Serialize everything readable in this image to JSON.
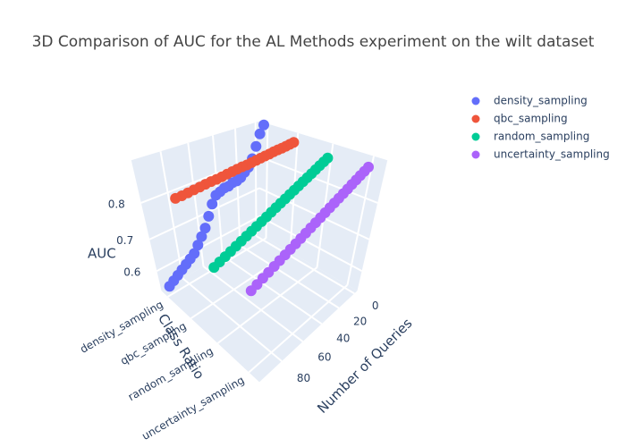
{
  "chart_data": {
    "type": "scatter3d",
    "title": "3D Comparison of AUC for the AL Methods experiment on the wilt dataset",
    "x_label": "Number of Queries",
    "y_label": "Class Ratio",
    "z_label": "AUC",
    "x": [
      0,
      4,
      8,
      12,
      16,
      20,
      24,
      28,
      32,
      36,
      40,
      44,
      48,
      52,
      56,
      60,
      64,
      68,
      72,
      76,
      80,
      84,
      88,
      92,
      96
    ],
    "categories": [
      "density_sampling",
      "qbc_sampling",
      "random_sampling",
      "uncertainty_sampling"
    ],
    "xlim": [
      -4,
      99
    ],
    "xticks": [
      0,
      20,
      40,
      60,
      80
    ],
    "ylim": [
      -0.3,
      3.3
    ],
    "zlim": [
      0.53,
      0.9
    ],
    "zticks": [
      0.6,
      0.7,
      0.8
    ],
    "grid": true,
    "legend_position": "right",
    "series": [
      {
        "name": "density_sampling",
        "color": "#636efa",
        "values": [
          0.9,
          0.88,
          0.85,
          0.82,
          0.8,
          0.79,
          0.78,
          0.775,
          0.775,
          0.77,
          0.77,
          0.765,
          0.76,
          0.74,
          0.71,
          0.68,
          0.66,
          0.64,
          0.62,
          0.61,
          0.6,
          0.59,
          0.58,
          0.57,
          0.56
        ]
      },
      {
        "name": "qbc_sampling",
        "color": "#ef553b",
        "values": [
          0.88,
          0.879,
          0.878,
          0.877,
          0.877,
          0.876,
          0.875,
          0.874,
          0.873,
          0.872,
          0.871,
          0.87,
          0.87,
          0.869,
          0.868,
          0.867,
          0.866,
          0.865,
          0.865,
          0.864,
          0.863,
          0.862,
          0.861,
          0.86,
          0.86
        ]
      },
      {
        "name": "random_sampling",
        "color": "#00cc96",
        "values": [
          0.87,
          0.865,
          0.86,
          0.855,
          0.85,
          0.845,
          0.84,
          0.835,
          0.83,
          0.825,
          0.82,
          0.815,
          0.81,
          0.805,
          0.8,
          0.795,
          0.79,
          0.785,
          0.78,
          0.775,
          0.77,
          0.765,
          0.76,
          0.755,
          0.75
        ]
      },
      {
        "name": "uncertainty_sampling",
        "color": "#ab63fa",
        "values": [
          0.88,
          0.875,
          0.87,
          0.865,
          0.86,
          0.855,
          0.85,
          0.845,
          0.84,
          0.835,
          0.83,
          0.825,
          0.82,
          0.815,
          0.81,
          0.805,
          0.8,
          0.795,
          0.79,
          0.785,
          0.78,
          0.775,
          0.77,
          0.765,
          0.76
        ]
      }
    ]
  }
}
